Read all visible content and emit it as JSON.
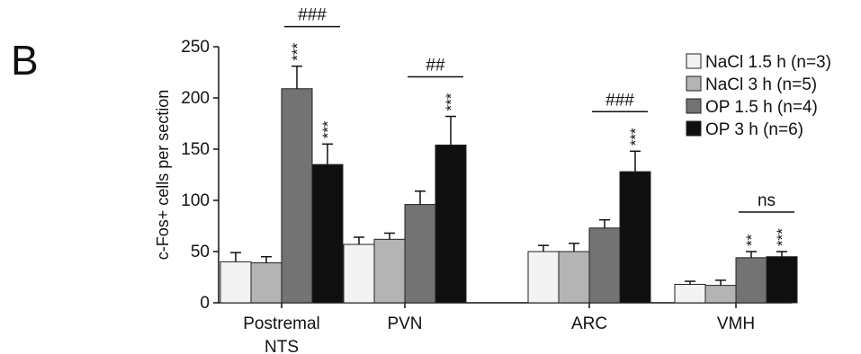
{
  "panel_label": "B",
  "chart_data": {
    "type": "bar",
    "ylabel": "c-Fos+ cells per section",
    "ylim": [
      0,
      250
    ],
    "yticks": [
      0,
      50,
      100,
      150,
      200,
      250
    ],
    "categories": [
      "Postremal\nNTS",
      "PVN",
      "ARC",
      "VMH"
    ],
    "series": [
      {
        "name": "NaCl 1.5 h (n=3)",
        "color": "#f3f3f3",
        "values": [
          40,
          57,
          50,
          18
        ],
        "errors": [
          9,
          7,
          6,
          3
        ],
        "sig": [
          "",
          "",
          "",
          ""
        ]
      },
      {
        "name": "NaCl 3 h (n=5)",
        "color": "#b4b4b4",
        "values": [
          39,
          62,
          50,
          17
        ],
        "errors": [
          6,
          6,
          8,
          5
        ],
        "sig": [
          "",
          "",
          "",
          ""
        ]
      },
      {
        "name": "OP 1.5 h (n=4)",
        "color": "#737373",
        "values": [
          209,
          96,
          73,
          44
        ],
        "errors": [
          22,
          13,
          8,
          6
        ],
        "sig": [
          "***",
          "",
          "",
          "**"
        ]
      },
      {
        "name": "OP 3 h (n=6)",
        "color": "#0f0f0f",
        "values": [
          135,
          154,
          128,
          45
        ],
        "errors": [
          20,
          28,
          20,
          5
        ],
        "sig": [
          "***",
          "***",
          "***",
          "***"
        ]
      }
    ],
    "comparisons": [
      {
        "category": 0,
        "from_series": 2,
        "to_series": 3,
        "label": "###"
      },
      {
        "category": 1,
        "from_series": 2,
        "to_series": 3,
        "label": "##"
      },
      {
        "category": 2,
        "from_series": 2,
        "to_series": 3,
        "label": "###"
      },
      {
        "category": 3,
        "from_series": 2,
        "to_series": 3,
        "label": "ns"
      }
    ],
    "legend_position": "top-right",
    "grid": false
  }
}
